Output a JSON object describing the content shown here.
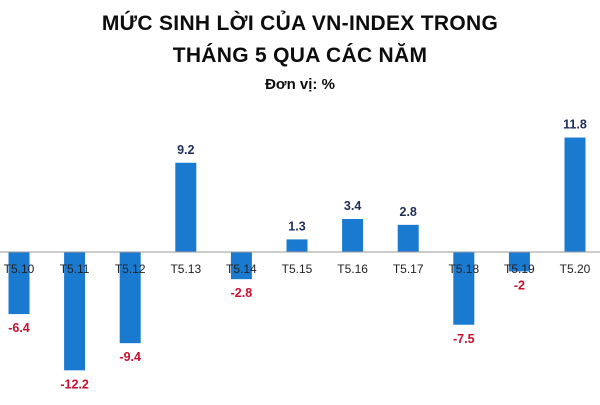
{
  "chart": {
    "title_line1": "MỨC SINH LỜI CỦA VN-INDEX TRONG",
    "title_line2": "THÁNG 5 QUA CÁC NĂM",
    "subtitle": "Đơn vị: %"
  },
  "colors": {
    "bar": "#1a7ad0",
    "positive_label": "#1f2d5a",
    "negative_label": "#c8102e",
    "axis": "#9a9a9a",
    "category_label": "#222222"
  },
  "chart_data": {
    "type": "bar",
    "title": "MỨC SINH LỜI CỦA VN-INDEX TRONG THÁNG 5 QUA CÁC NĂM",
    "subtitle": "Đơn vị: %",
    "categories": [
      "T5.10",
      "T5.11",
      "T5.12",
      "T5.13",
      "T5.14",
      "T5.15",
      "T5.16",
      "T5.17",
      "T5.18",
      "T5.19",
      "T5.20"
    ],
    "values": [
      -6.4,
      -12.2,
      -9.4,
      9.2,
      -2.8,
      1.3,
      3.4,
      2.8,
      -7.5,
      -2,
      11.8
    ],
    "value_labels": [
      "-6.4",
      "-12.2",
      "-9.4",
      "9.2",
      "-2.8",
      "1.3",
      "3.4",
      "2.8",
      "-7.5",
      "-2",
      "11.8"
    ],
    "xlabel": "",
    "ylabel": "",
    "ylim": [
      -12.2,
      11.8
    ],
    "grid": false,
    "legend": "none"
  }
}
